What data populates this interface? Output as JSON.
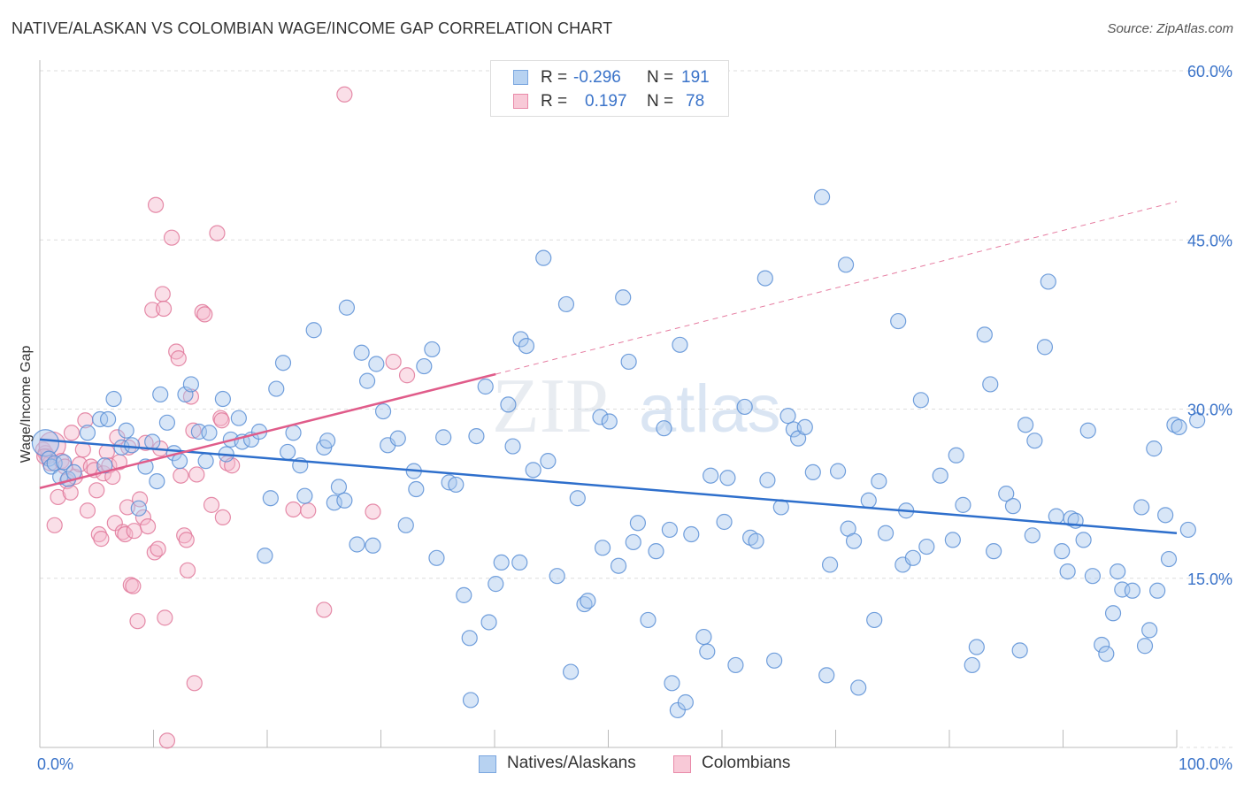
{
  "title": "NATIVE/ALASKAN VS COLOMBIAN WAGE/INCOME GAP CORRELATION CHART",
  "source": "Source: ZipAtlas.com",
  "watermark": {
    "zip": "ZIP",
    "atlas": "atlas"
  },
  "stats": {
    "r_label": "R =",
    "n_label": "N =",
    "series": [
      {
        "r": "-0.296",
        "n": "191"
      },
      {
        "r": "0.197",
        "n": "78"
      }
    ]
  },
  "colors": {
    "blue_fill": "#a9c8ee",
    "blue_stroke": "#5b8fd6",
    "blue_line": "#2e6fcc",
    "pink_fill": "#f5b8cb",
    "pink_stroke": "#e0789a",
    "pink_line": "#e05c8a",
    "tick_label": "#3a73c9",
    "grid": "#dddddd"
  },
  "chart_data": {
    "type": "scatter",
    "title": "NATIVE/ALASKAN VS COLOMBIAN WAGE/INCOME GAP CORRELATION CHART",
    "xlabel": "",
    "ylabel": "Wage/Income Gap",
    "xlim": [
      0,
      100
    ],
    "ylim": [
      0,
      61
    ],
    "x_tick_labels": [
      "0.0%",
      "100.0%"
    ],
    "y_ticks": [
      15,
      30,
      45,
      60
    ],
    "y_tick_labels": [
      "15.0%",
      "30.0%",
      "45.0%",
      "60.0%"
    ],
    "legend": [
      "Natives/Alaskans",
      "Colombians"
    ],
    "series": [
      {
        "name": "Natives/Alaskans",
        "r": -0.296,
        "n": 191,
        "trend": {
          "x": [
            0,
            100
          ],
          "y": [
            27.3,
            19.0
          ]
        },
        "points": [
          [
            0.5,
            27.0
          ],
          [
            0.8,
            25.6
          ],
          [
            1.0,
            24.9
          ],
          [
            1.3,
            25.2
          ],
          [
            1.8,
            24.0
          ],
          [
            2.1,
            25.3
          ],
          [
            2.5,
            23.8
          ],
          [
            3.0,
            24.4
          ],
          [
            4.2,
            27.9
          ],
          [
            5.3,
            29.1
          ],
          [
            5.7,
            25.0
          ],
          [
            6.0,
            29.1
          ],
          [
            6.5,
            30.9
          ],
          [
            7.2,
            26.6
          ],
          [
            7.6,
            28.1
          ],
          [
            8.1,
            26.8
          ],
          [
            8.7,
            21.2
          ],
          [
            9.3,
            24.9
          ],
          [
            9.9,
            27.1
          ],
          [
            10.3,
            23.6
          ],
          [
            10.6,
            31.3
          ],
          [
            11.2,
            28.8
          ],
          [
            11.8,
            26.1
          ],
          [
            12.3,
            25.4
          ],
          [
            12.8,
            31.3
          ],
          [
            13.3,
            32.2
          ],
          [
            14.0,
            28.0
          ],
          [
            14.6,
            25.4
          ],
          [
            14.9,
            27.9
          ],
          [
            16.1,
            30.9
          ],
          [
            16.4,
            26.0
          ],
          [
            16.8,
            27.3
          ],
          [
            17.5,
            29.2
          ],
          [
            17.8,
            27.1
          ],
          [
            18.6,
            27.3
          ],
          [
            19.3,
            28.0
          ],
          [
            19.8,
            17.0
          ],
          [
            20.3,
            22.1
          ],
          [
            20.8,
            31.8
          ],
          [
            21.4,
            34.1
          ],
          [
            21.8,
            26.2
          ],
          [
            22.3,
            27.9
          ],
          [
            22.9,
            25.0
          ],
          [
            23.3,
            22.3
          ],
          [
            24.1,
            37.0
          ],
          [
            25.0,
            26.6
          ],
          [
            25.3,
            27.2
          ],
          [
            25.9,
            21.7
          ],
          [
            26.3,
            23.1
          ],
          [
            26.8,
            21.9
          ],
          [
            27.0,
            39.0
          ],
          [
            27.9,
            18.0
          ],
          [
            28.3,
            35.0
          ],
          [
            28.8,
            32.5
          ],
          [
            29.3,
            17.9
          ],
          [
            29.6,
            34.0
          ],
          [
            30.2,
            29.8
          ],
          [
            30.6,
            26.8
          ],
          [
            31.5,
            27.4
          ],
          [
            32.2,
            19.7
          ],
          [
            32.9,
            24.5
          ],
          [
            33.1,
            22.9
          ],
          [
            33.8,
            33.8
          ],
          [
            34.5,
            35.3
          ],
          [
            34.9,
            16.8
          ],
          [
            35.5,
            27.5
          ],
          [
            36.0,
            23.5
          ],
          [
            36.6,
            23.3
          ],
          [
            37.3,
            13.5
          ],
          [
            37.8,
            9.7
          ],
          [
            37.9,
            4.2
          ],
          [
            38.4,
            27.6
          ],
          [
            39.2,
            32.0
          ],
          [
            39.5,
            11.1
          ],
          [
            40.1,
            14.5
          ],
          [
            40.6,
            16.4
          ],
          [
            41.2,
            30.4
          ],
          [
            41.6,
            26.7
          ],
          [
            42.2,
            16.4
          ],
          [
            42.3,
            36.2
          ],
          [
            42.8,
            35.6
          ],
          [
            43.4,
            24.6
          ],
          [
            44.3,
            43.4
          ],
          [
            44.7,
            25.4
          ],
          [
            45.5,
            15.2
          ],
          [
            46.3,
            39.3
          ],
          [
            46.7,
            6.7
          ],
          [
            47.3,
            22.1
          ],
          [
            47.9,
            12.7
          ],
          [
            48.2,
            13.0
          ],
          [
            49.3,
            29.3
          ],
          [
            49.5,
            17.7
          ],
          [
            50.1,
            28.9
          ],
          [
            50.9,
            16.1
          ],
          [
            51.3,
            39.9
          ],
          [
            51.8,
            34.2
          ],
          [
            52.2,
            18.2
          ],
          [
            52.6,
            19.9
          ],
          [
            53.5,
            11.3
          ],
          [
            54.2,
            17.4
          ],
          [
            54.9,
            28.3
          ],
          [
            55.4,
            19.3
          ],
          [
            55.6,
            5.7
          ],
          [
            56.1,
            3.3
          ],
          [
            56.3,
            35.7
          ],
          [
            56.8,
            4.0
          ],
          [
            57.3,
            18.9
          ],
          [
            58.4,
            9.8
          ],
          [
            58.7,
            8.5
          ],
          [
            59.0,
            24.1
          ],
          [
            60.2,
            20.0
          ],
          [
            60.5,
            23.9
          ],
          [
            61.2,
            7.3
          ],
          [
            62.0,
            30.2
          ],
          [
            62.5,
            18.6
          ],
          [
            63.0,
            18.3
          ],
          [
            63.8,
            41.6
          ],
          [
            64.0,
            23.7
          ],
          [
            64.6,
            7.7
          ],
          [
            65.2,
            21.3
          ],
          [
            65.8,
            29.4
          ],
          [
            66.3,
            28.2
          ],
          [
            66.7,
            27.4
          ],
          [
            67.3,
            28.4
          ],
          [
            68.0,
            24.4
          ],
          [
            68.8,
            48.8
          ],
          [
            69.2,
            6.4
          ],
          [
            69.5,
            16.2
          ],
          [
            70.2,
            24.5
          ],
          [
            70.9,
            42.8
          ],
          [
            71.1,
            19.4
          ],
          [
            71.6,
            18.3
          ],
          [
            72.0,
            5.3
          ],
          [
            72.9,
            21.9
          ],
          [
            73.4,
            11.3
          ],
          [
            73.8,
            23.6
          ],
          [
            74.4,
            19.0
          ],
          [
            75.5,
            37.8
          ],
          [
            75.9,
            16.2
          ],
          [
            76.2,
            21.0
          ],
          [
            76.8,
            16.8
          ],
          [
            77.5,
            30.8
          ],
          [
            78.0,
            17.8
          ],
          [
            79.2,
            24.1
          ],
          [
            80.3,
            18.4
          ],
          [
            80.6,
            25.9
          ],
          [
            81.2,
            21.5
          ],
          [
            82.0,
            7.3
          ],
          [
            82.4,
            8.9
          ],
          [
            83.1,
            36.6
          ],
          [
            83.6,
            32.2
          ],
          [
            83.9,
            17.4
          ],
          [
            85.0,
            22.5
          ],
          [
            85.6,
            21.4
          ],
          [
            86.2,
            8.6
          ],
          [
            86.7,
            28.6
          ],
          [
            87.3,
            18.8
          ],
          [
            87.5,
            27.2
          ],
          [
            88.4,
            35.5
          ],
          [
            88.7,
            41.3
          ],
          [
            89.4,
            20.5
          ],
          [
            89.9,
            17.4
          ],
          [
            90.4,
            15.6
          ],
          [
            90.7,
            20.3
          ],
          [
            91.1,
            20.1
          ],
          [
            91.8,
            18.4
          ],
          [
            92.2,
            28.1
          ],
          [
            92.6,
            15.2
          ],
          [
            93.4,
            9.1
          ],
          [
            93.8,
            8.3
          ],
          [
            94.4,
            11.9
          ],
          [
            94.8,
            15.6
          ],
          [
            95.2,
            14.0
          ],
          [
            96.1,
            13.9
          ],
          [
            96.9,
            21.3
          ],
          [
            97.2,
            9.0
          ],
          [
            97.6,
            10.4
          ],
          [
            98.0,
            26.5
          ],
          [
            98.3,
            13.9
          ],
          [
            99.0,
            20.6
          ],
          [
            99.3,
            16.7
          ],
          [
            99.8,
            28.6
          ],
          [
            100.2,
            28.4
          ],
          [
            101.0,
            19.3
          ],
          [
            101.8,
            29.0
          ]
        ]
      },
      {
        "name": "Colombians",
        "r": 0.197,
        "n": 78,
        "trend": {
          "x": [
            0,
            40.1
          ],
          "y": [
            23.0,
            33.1
          ],
          "dashed_to": [
            100,
            48.4
          ]
        },
        "points": [
          [
            0.3,
            26.4
          ],
          [
            0.5,
            26.1
          ],
          [
            0.7,
            25.8
          ],
          [
            0.9,
            25.2
          ],
          [
            1.1,
            26.8
          ],
          [
            1.3,
            19.7
          ],
          [
            1.6,
            22.2
          ],
          [
            1.9,
            25.4
          ],
          [
            2.2,
            24.9
          ],
          [
            2.4,
            23.6
          ],
          [
            2.7,
            22.6
          ],
          [
            2.8,
            27.9
          ],
          [
            3.1,
            24.0
          ],
          [
            3.5,
            25.1
          ],
          [
            3.8,
            26.4
          ],
          [
            4.0,
            29.0
          ],
          [
            4.2,
            21.0
          ],
          [
            4.5,
            24.9
          ],
          [
            4.8,
            24.6
          ],
          [
            5.0,
            22.8
          ],
          [
            5.2,
            18.9
          ],
          [
            5.4,
            18.5
          ],
          [
            5.6,
            24.3
          ],
          [
            5.9,
            26.2
          ],
          [
            6.1,
            25.0
          ],
          [
            6.4,
            24.0
          ],
          [
            6.6,
            19.9
          ],
          [
            6.8,
            27.5
          ],
          [
            7.0,
            25.3
          ],
          [
            7.3,
            19.1
          ],
          [
            7.5,
            18.9
          ],
          [
            7.7,
            21.3
          ],
          [
            7.8,
            26.6
          ],
          [
            8.0,
            14.4
          ],
          [
            8.2,
            14.3
          ],
          [
            8.3,
            19.2
          ],
          [
            8.6,
            11.2
          ],
          [
            8.8,
            22.0
          ],
          [
            9.1,
            20.4
          ],
          [
            9.3,
            27.0
          ],
          [
            9.5,
            19.6
          ],
          [
            9.9,
            38.8
          ],
          [
            10.1,
            17.3
          ],
          [
            10.2,
            48.1
          ],
          [
            10.4,
            17.6
          ],
          [
            10.6,
            26.5
          ],
          [
            10.8,
            40.2
          ],
          [
            10.9,
            38.9
          ],
          [
            11.0,
            11.5
          ],
          [
            11.2,
            0.6
          ],
          [
            11.6,
            45.2
          ],
          [
            12.0,
            35.1
          ],
          [
            12.2,
            34.5
          ],
          [
            12.4,
            24.1
          ],
          [
            12.7,
            18.8
          ],
          [
            12.9,
            18.4
          ],
          [
            13.0,
            15.7
          ],
          [
            13.3,
            31.1
          ],
          [
            13.5,
            28.1
          ],
          [
            13.6,
            5.7
          ],
          [
            13.8,
            24.2
          ],
          [
            14.3,
            38.6
          ],
          [
            14.5,
            38.4
          ],
          [
            15.1,
            21.5
          ],
          [
            15.6,
            45.6
          ],
          [
            15.9,
            29.2
          ],
          [
            16.0,
            29.0
          ],
          [
            16.1,
            20.4
          ],
          [
            16.5,
            25.2
          ],
          [
            16.9,
            25.0
          ],
          [
            22.3,
            21.1
          ],
          [
            23.6,
            21.0
          ],
          [
            25.0,
            12.2
          ],
          [
            26.8,
            57.9
          ],
          [
            29.3,
            20.9
          ],
          [
            31.1,
            34.2
          ],
          [
            32.3,
            33.0
          ],
          [
            0.4,
            25.8
          ]
        ]
      }
    ]
  }
}
